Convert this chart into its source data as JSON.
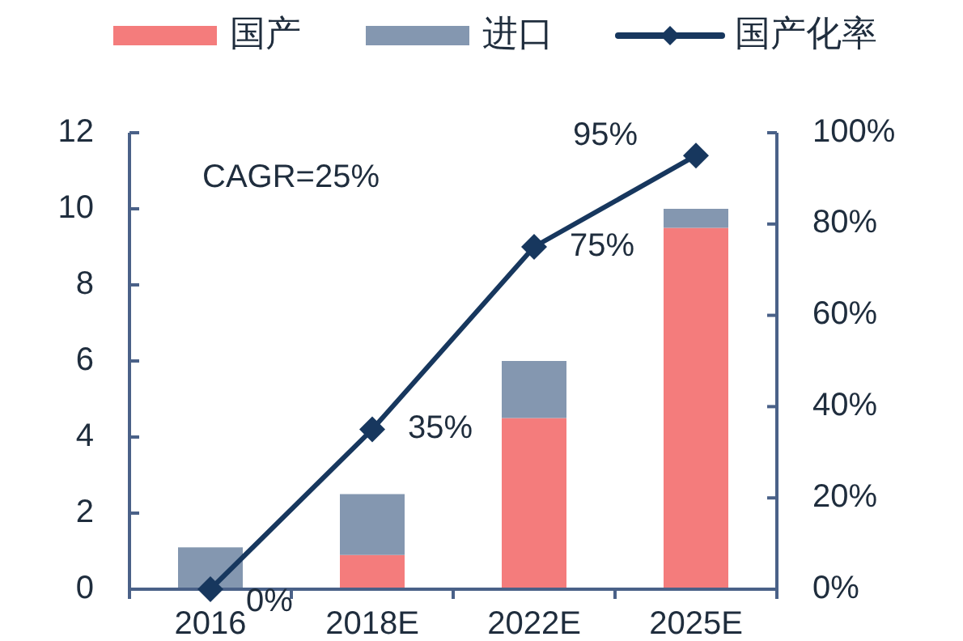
{
  "chart_data": {
    "type": "bar",
    "stacked": true,
    "legend": "top",
    "categories": [
      "2016",
      "2018E",
      "2022E",
      "2025E"
    ],
    "ylim": [
      0,
      12
    ],
    "yticks": [
      0,
      2,
      4,
      6,
      8,
      10,
      12
    ],
    "y2lim": [
      0,
      100
    ],
    "y2ticks": [
      {
        "value": 0,
        "label": "0%"
      },
      {
        "value": 20,
        "label": "20%"
      },
      {
        "value": 40,
        "label": "40%"
      },
      {
        "value": 60,
        "label": "60%"
      },
      {
        "value": 80,
        "label": "80%"
      },
      {
        "value": 100,
        "label": "100%"
      }
    ],
    "annotations": [
      "CAGR=25%"
    ],
    "series": [
      {
        "name": "国产",
        "color": "#f47c7c",
        "values": [
          0,
          0.9,
          4.5,
          9.5
        ]
      },
      {
        "name": "进口",
        "color": "#8497b0",
        "values": [
          1.1,
          1.6,
          1.5,
          0.5
        ]
      },
      {
        "name": "国产化率",
        "type": "line",
        "axis": "y2",
        "color": "#17375e",
        "marker": "diamond",
        "values": [
          0,
          35,
          75,
          95
        ],
        "value_labels": [
          "0%",
          "35%",
          "75%",
          "95%"
        ]
      }
    ]
  }
}
